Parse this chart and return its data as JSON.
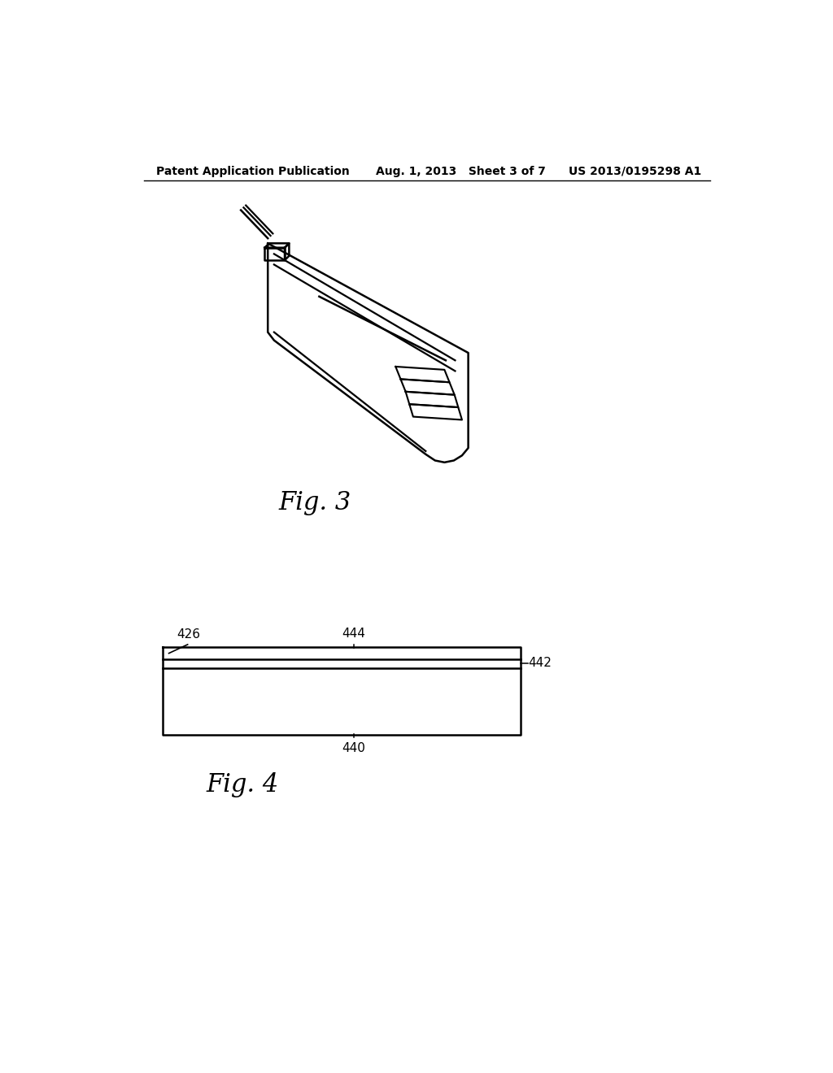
{
  "header_left": "Patent Application Publication",
  "header_mid": "Aug. 1, 2013   Sheet 3 of 7",
  "header_right": "US 2013/0195298 A1",
  "fig3_label": "Fig. 3",
  "fig4_label": "Fig. 4",
  "label_426": "426",
  "label_444": "444",
  "label_442": "442",
  "label_440": "440",
  "bg_color": "#ffffff",
  "line_color": "#000000"
}
